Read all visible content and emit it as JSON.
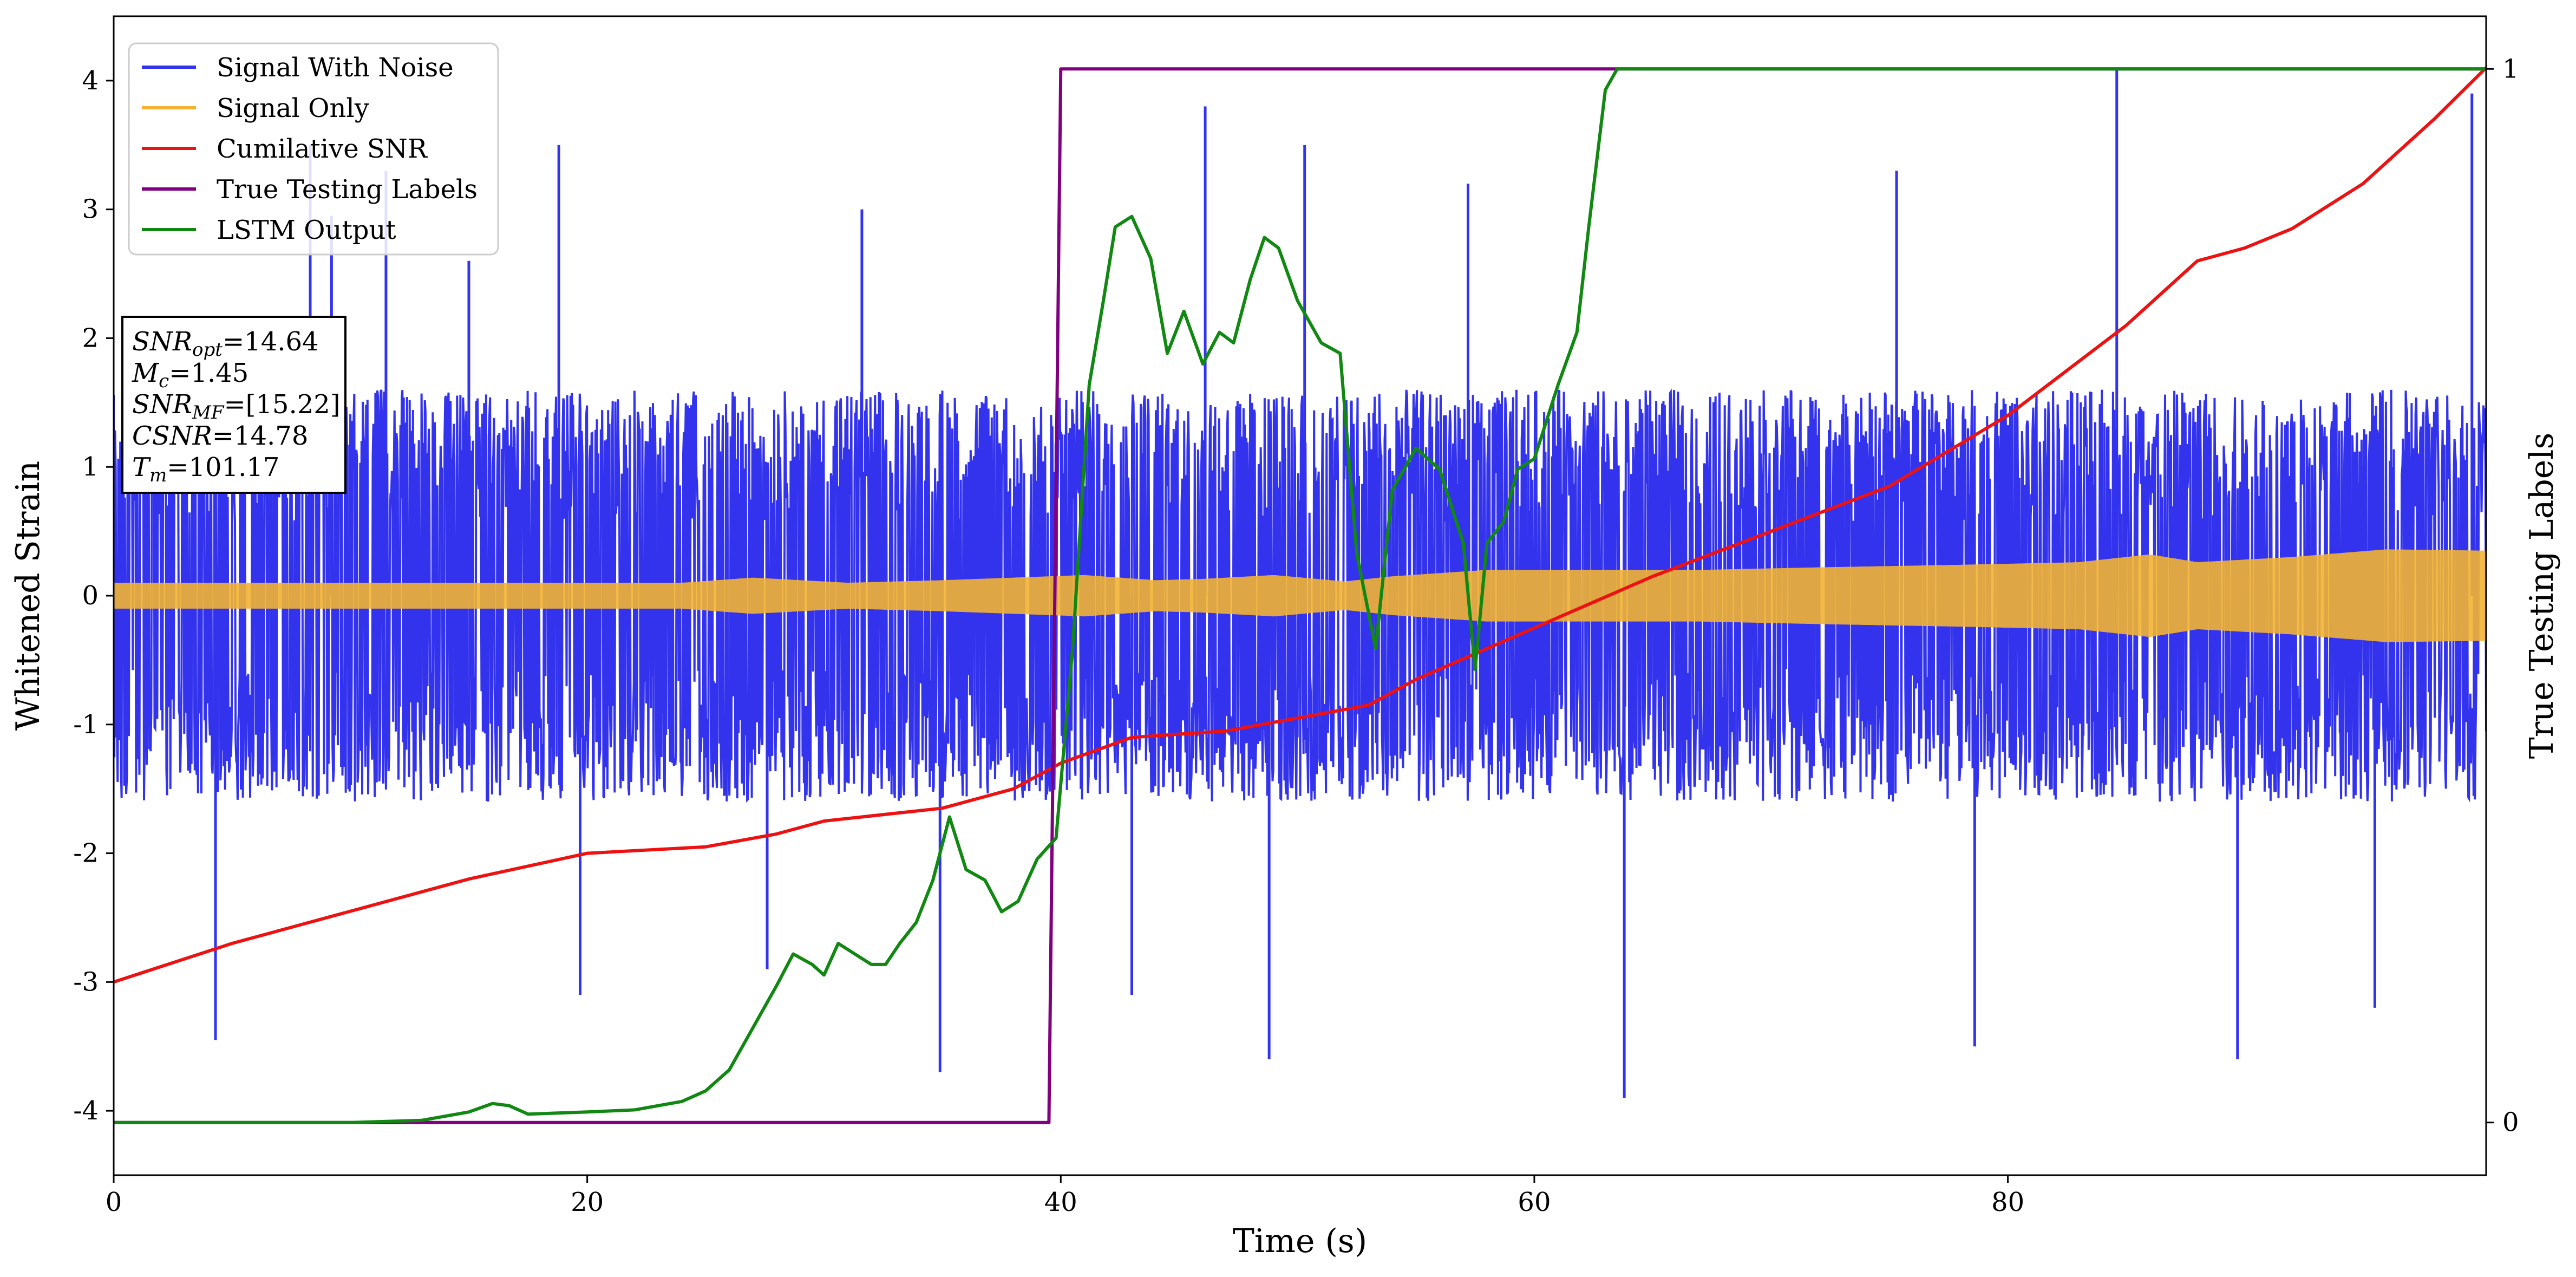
{
  "chart_data": {
    "type": "line",
    "xlabel": "Time (s)",
    "ylabel": "Whitened Strain",
    "ylabel_right": "True Testing Labels",
    "xlim": [
      0,
      100.2
    ],
    "ylim": [
      -4.5,
      4.5
    ],
    "ylim_right": [
      -0.05,
      1.05
    ],
    "x_ticks": [
      0,
      20,
      40,
      60,
      80
    ],
    "y_ticks": [
      -4,
      -3,
      -2,
      -1,
      0,
      1,
      2,
      3,
      4
    ],
    "y_ticks_right": [
      0,
      1
    ],
    "legend_position": "upper-left",
    "legend": [
      {
        "label": "Signal With Noise",
        "color": "#3333ee"
      },
      {
        "label": "Signal Only",
        "color": "#f2b233"
      },
      {
        "label": "Cumilative SNR",
        "color": "#ee1111"
      },
      {
        "label": "True Testing Labels",
        "color": "#800080"
      },
      {
        "label": "LSTM Output",
        "color": "#118811"
      }
    ],
    "annotation": [
      {
        "sym": "SNR",
        "sub": "opt",
        "value": "=14.64"
      },
      {
        "sym": "M",
        "sub": "c",
        "value": "=1.45"
      },
      {
        "sym": "SNR",
        "sub": "MF",
        "value": "=[15.22]"
      },
      {
        "sym": "CSNR",
        "sub": "",
        "value": "=14.78"
      },
      {
        "sym": "T",
        "sub": "m",
        "value": "=101.17"
      }
    ],
    "series": [
      {
        "name": "Signal With Noise",
        "axis": "left",
        "color": "#3333ee",
        "style": "dense-noise",
        "band": [
          -1.6,
          1.6
        ],
        "extremes": [
          [
            4.3,
            -3.45
          ],
          [
            8.3,
            3.5
          ],
          [
            9.2,
            2.95
          ],
          [
            11.5,
            3.3
          ],
          [
            15.0,
            2.6
          ],
          [
            18.8,
            3.5
          ],
          [
            19.7,
            -3.1
          ],
          [
            27.6,
            -2.9
          ],
          [
            31.6,
            3.0
          ],
          [
            34.9,
            -3.7
          ],
          [
            43.0,
            -3.1
          ],
          [
            46.1,
            3.8
          ],
          [
            48.8,
            -3.6
          ],
          [
            50.3,
            3.5
          ],
          [
            57.2,
            3.2
          ],
          [
            63.8,
            -3.9
          ],
          [
            75.3,
            3.3
          ],
          [
            78.6,
            -3.5
          ],
          [
            84.6,
            4.1
          ],
          [
            89.7,
            -3.6
          ],
          [
            95.5,
            -3.2
          ],
          [
            99.6,
            3.9
          ]
        ]
      },
      {
        "name": "Signal Only",
        "axis": "left",
        "color": "#f2b233",
        "style": "envelope",
        "envelope": [
          [
            0,
            0.1
          ],
          [
            24,
            0.1
          ],
          [
            27,
            0.14
          ],
          [
            31,
            0.1
          ],
          [
            35,
            0.12
          ],
          [
            41,
            0.16
          ],
          [
            44,
            0.12
          ],
          [
            46,
            0.13
          ],
          [
            49,
            0.16
          ],
          [
            52,
            0.11
          ],
          [
            54,
            0.15
          ],
          [
            58,
            0.2
          ],
          [
            62,
            0.2
          ],
          [
            67,
            0.2
          ],
          [
            72,
            0.22
          ],
          [
            78,
            0.24
          ],
          [
            83,
            0.26
          ],
          [
            86,
            0.32
          ],
          [
            88,
            0.26
          ],
          [
            92,
            0.3
          ],
          [
            96,
            0.36
          ],
          [
            100.2,
            0.35
          ]
        ]
      },
      {
        "name": "Cumilative SNR",
        "axis": "left",
        "color": "#ee1111",
        "style": "line",
        "x": [
          0,
          5,
          10,
          15,
          20,
          25,
          28,
          30,
          35,
          38,
          40,
          43,
          47,
          50,
          53,
          55,
          60,
          65,
          70,
          75,
          80,
          85,
          88,
          90,
          92,
          95,
          98,
          100.2
        ],
        "y": [
          -3.0,
          -2.7,
          -2.45,
          -2.2,
          -2.0,
          -1.95,
          -1.85,
          -1.75,
          -1.65,
          -1.5,
          -1.3,
          -1.1,
          -1.05,
          -0.95,
          -0.85,
          -0.65,
          -0.25,
          0.15,
          0.5,
          0.85,
          1.4,
          2.1,
          2.6,
          2.7,
          2.85,
          3.2,
          3.7,
          4.1
        ]
      },
      {
        "name": "True Testing Labels",
        "axis": "right",
        "color": "#800080",
        "style": "line",
        "x": [
          0,
          39.5,
          40.0,
          100.2
        ],
        "y": [
          0,
          0,
          1,
          1
        ]
      },
      {
        "name": "LSTM Output",
        "axis": "right",
        "color": "#118811",
        "style": "line",
        "x": [
          0,
          5,
          10,
          13,
          15,
          16,
          16.7,
          17.5,
          20,
          22,
          24,
          25,
          26,
          27,
          28,
          28.7,
          29.5,
          30,
          30.6,
          31.3,
          32,
          32.6,
          33.2,
          33.9,
          34.6,
          35.3,
          36,
          36.8,
          37.5,
          38.2,
          39.0,
          39.8,
          40.5,
          41.2,
          41.8,
          42.3,
          43.0,
          43.8,
          44.5,
          45.2,
          46.0,
          46.7,
          47.3,
          48.0,
          48.6,
          49.2,
          50.0,
          51.0,
          51.8,
          52.5,
          53.3,
          54.0,
          55.0,
          56.0,
          57.0,
          57.5,
          58.0,
          58.7,
          59.3,
          60.0,
          61.0,
          61.8,
          62.3,
          63.0,
          63.5,
          64.0,
          65.0,
          66.0,
          67.0,
          68.0,
          70.0,
          72.0,
          100.2
        ],
        "y": [
          0,
          0,
          0.0,
          0.002,
          0.01,
          0.018,
          0.016,
          0.008,
          0.01,
          0.012,
          0.02,
          0.03,
          0.05,
          0.09,
          0.13,
          0.16,
          0.15,
          0.14,
          0.17,
          0.16,
          0.15,
          0.15,
          0.17,
          0.19,
          0.23,
          0.29,
          0.24,
          0.23,
          0.2,
          0.21,
          0.25,
          0.27,
          0.45,
          0.7,
          0.78,
          0.85,
          0.86,
          0.82,
          0.73,
          0.77,
          0.72,
          0.75,
          0.74,
          0.8,
          0.84,
          0.83,
          0.78,
          0.74,
          0.73,
          0.54,
          0.45,
          0.6,
          0.64,
          0.62,
          0.55,
          0.43,
          0.55,
          0.57,
          0.62,
          0.63,
          0.7,
          0.75,
          0.85,
          0.98,
          1.0,
          1.0,
          1.0,
          1.0,
          1.0,
          1.0,
          1.0,
          1.0,
          1.0
        ]
      }
    ]
  }
}
